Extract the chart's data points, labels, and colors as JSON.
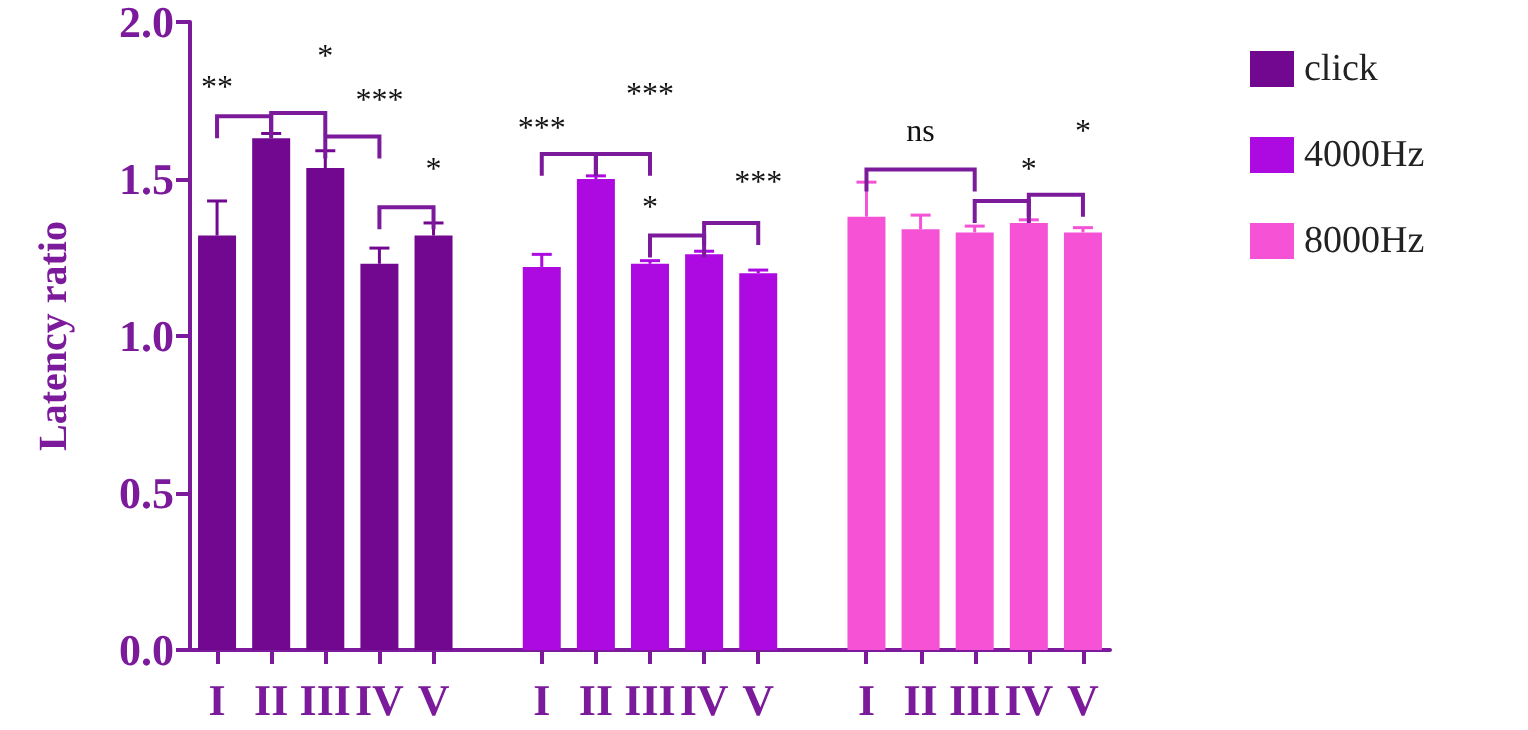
{
  "chart_data": {
    "type": "bar",
    "ylabel": "Latency ratio",
    "categories": [
      "I",
      "II",
      "III",
      "IV",
      "V",
      null,
      "I",
      "II",
      "III",
      "IV",
      "V",
      null,
      "I",
      "II",
      "III",
      "IV",
      "V"
    ],
    "series": [
      {
        "name": "click",
        "color": "#72088f",
        "values": [
          1.32,
          1.63,
          1.535,
          1.23,
          1.32,
          null,
          null,
          null,
          null,
          null,
          null,
          null,
          null,
          null,
          null,
          null,
          null
        ],
        "errors": [
          [
            1.32,
            1.43
          ],
          [
            1.63,
            1.645
          ],
          [
            1.535,
            1.59
          ],
          [
            1.23,
            1.28
          ],
          [
            1.32,
            1.36
          ],
          null,
          null,
          null,
          null,
          null,
          null,
          null,
          null,
          null,
          null,
          null,
          null
        ]
      },
      {
        "name": "4000Hz",
        "color": "#ac0ae0",
        "values": [
          null,
          null,
          null,
          null,
          null,
          null,
          1.22,
          1.5,
          1.23,
          1.26,
          1.2,
          null,
          null,
          null,
          null,
          null,
          null
        ],
        "errors": [
          null,
          null,
          null,
          null,
          null,
          null,
          [
            1.22,
            1.26
          ],
          [
            1.5,
            1.51
          ],
          [
            1.23,
            1.24
          ],
          [
            1.26,
            1.27
          ],
          [
            1.2,
            1.21
          ],
          null,
          null,
          null,
          null,
          null,
          null
        ]
      },
      {
        "name": "8000Hz",
        "color": "#f552d6",
        "values": [
          null,
          null,
          null,
          null,
          null,
          null,
          null,
          null,
          null,
          null,
          null,
          null,
          1.38,
          1.34,
          1.33,
          1.36,
          1.33
        ],
        "errors": [
          null,
          null,
          null,
          null,
          null,
          null,
          null,
          null,
          null,
          null,
          null,
          null,
          [
            1.38,
            1.49
          ],
          [
            1.34,
            1.385
          ],
          [
            1.33,
            1.35
          ],
          [
            1.36,
            1.37
          ],
          [
            1.33,
            1.345
          ]
        ]
      }
    ],
    "annotations": [
      "**",
      "*",
      "***",
      "*",
      "***",
      "***",
      "*",
      "***",
      "ns",
      "*",
      "*"
    ],
    "ylim": [
      0,
      2
    ],
    "yticks": [
      {
        "value": 0,
        "label": "0.0"
      },
      {
        "value": 0.5,
        "label": "0.5"
      },
      {
        "value": 1,
        "label": "1.0"
      },
      {
        "value": 1.5,
        "label": "1.5"
      },
      {
        "value": 2,
        "label": "2.0"
      }
    ],
    "grid": false,
    "legend": "top right"
  }
}
